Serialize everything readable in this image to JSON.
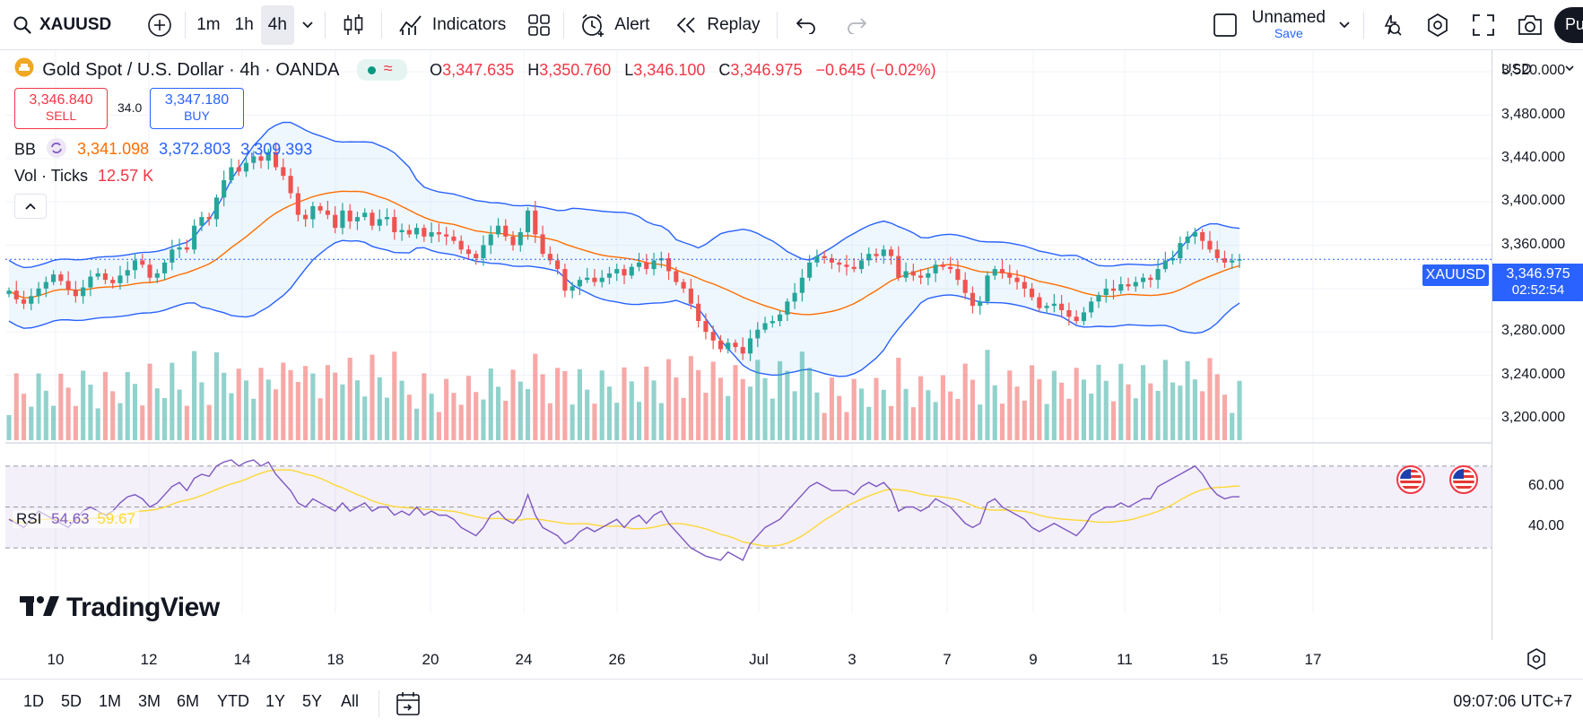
{
  "toolbar": {
    "symbol": "XAUUSD",
    "intervals": [
      "1m",
      "1h",
      "4h"
    ],
    "active_interval": "4h",
    "indicators_label": "Indicators",
    "alert_label": "Alert",
    "replay_label": "Replay",
    "layout_name": "Unnamed",
    "layout_save": "Save",
    "publish_label": "Pu"
  },
  "legend": {
    "title": "Gold Spot / U.S. Dollar · 4h · OANDA",
    "o_label": "O",
    "o": "3,347.635",
    "h_label": "H",
    "h": "3,350.760",
    "l_label": "L",
    "l": "3,346.100",
    "c_label": "C",
    "c": "3,346.975",
    "change": "−0.645 (−0.02%)",
    "sell_price": "3,346.840",
    "sell_label": "SELL",
    "spread": "34.0",
    "buy_price": "3,347.180",
    "buy_label": "BUY",
    "bb_label": "BB",
    "bb_mid": "3,341.098",
    "bb_upper": "3,372.803",
    "bb_lower": "3,309.393",
    "vol_label": "Vol · Ticks",
    "vol_value": "12.57 K",
    "rsi_label": "RSI",
    "rsi_value": "54.63",
    "rsi_ma": "59.67",
    "watermark": "TradingView"
  },
  "price_axis": {
    "currency": "USD",
    "labels": [
      "3,520.000",
      "3,480.000",
      "3,440.000",
      "3,400.000",
      "3,360.000",
      "3,320.000",
      "3,280.000",
      "3,240.000",
      "3,200.000"
    ],
    "symbol_tag": "XAUUSD",
    "last_price": "3,346.975",
    "countdown": "02:52:54",
    "rsi_labels": [
      "60.00",
      "40.00"
    ]
  },
  "time_axis": {
    "labels": [
      "10",
      "12",
      "14",
      "18",
      "20",
      "24",
      "26",
      "Jul",
      "3",
      "7",
      "9",
      "11",
      "15",
      "17"
    ]
  },
  "bottom": {
    "ranges": [
      "1D",
      "5D",
      "1M",
      "3M",
      "6M",
      "YTD",
      "1Y",
      "5Y",
      "All"
    ],
    "clock": "09:07:06 UTC+7"
  },
  "colors": {
    "up": "#26a69a",
    "down": "#ef5350",
    "bb_line": "#2962ff",
    "bb_mid": "#ff6d00",
    "rsi": "#7e57c2",
    "rsi_ma": "#fdd835",
    "accent": "#2962ff"
  },
  "chart_data": {
    "type": "candlestick",
    "symbol": "XAUUSD",
    "ylim": [
      3180,
      3540
    ],
    "rsi_ylim": [
      20,
      80
    ],
    "close": [
      3318,
      3310,
      3306,
      3313,
      3320,
      3326,
      3333,
      3327,
      3319,
      3313,
      3321,
      3331,
      3334,
      3328,
      3325,
      3332,
      3337,
      3346,
      3342,
      3330,
      3334,
      3344,
      3356,
      3358,
      3356,
      3378,
      3386,
      3384,
      3404,
      3420,
      3432,
      3428,
      3436,
      3442,
      3438,
      3446,
      3432,
      3424,
      3408,
      3388,
      3384,
      3396,
      3392,
      3388,
      3376,
      3392,
      3382,
      3386,
      3390,
      3378,
      3384,
      3386,
      3372,
      3374,
      3370,
      3376,
      3368,
      3372,
      3370,
      3368,
      3364,
      3356,
      3352,
      3348,
      3360,
      3370,
      3378,
      3368,
      3360,
      3372,
      3392,
      3370,
      3352,
      3346,
      3338,
      3318,
      3322,
      3328,
      3330,
      3326,
      3330,
      3334,
      3338,
      3332,
      3340,
      3344,
      3338,
      3346,
      3348,
      3336,
      3326,
      3320,
      3306,
      3290,
      3280,
      3272,
      3264,
      3270,
      3266,
      3260,
      3274,
      3282,
      3288,
      3290,
      3296,
      3308,
      3316,
      3330,
      3344,
      3350,
      3348,
      3344,
      3342,
      3340,
      3338,
      3346,
      3352,
      3350,
      3356,
      3350,
      3330,
      3336,
      3332,
      3330,
      3334,
      3342,
      3340,
      3338,
      3328,
      3316,
      3304,
      3308,
      3332,
      3338,
      3334,
      3330,
      3326,
      3320,
      3312,
      3302,
      3304,
      3306,
      3300,
      3294,
      3290,
      3298,
      3308,
      3314,
      3320,
      3318,
      3324,
      3322,
      3326,
      3330,
      3328,
      3338,
      3346,
      3348,
      3362,
      3368,
      3372,
      3364,
      3356,
      3348,
      3344,
      3346,
      3347
    ],
    "rsi": [
      44,
      42,
      40,
      44,
      48,
      46,
      44,
      42,
      40,
      44,
      48,
      50,
      48,
      46,
      48,
      52,
      55,
      56,
      54,
      50,
      52,
      56,
      60,
      62,
      58,
      64,
      66,
      65,
      70,
      72,
      73,
      70,
      72,
      73,
      70,
      72,
      66,
      62,
      58,
      52,
      50,
      54,
      52,
      50,
      48,
      52,
      48,
      50,
      52,
      48,
      50,
      50,
      46,
      48,
      46,
      50,
      46,
      48,
      46,
      46,
      44,
      40,
      38,
      36,
      40,
      46,
      48,
      44,
      42,
      46,
      56,
      46,
      40,
      38,
      36,
      32,
      34,
      38,
      40,
      38,
      40,
      42,
      44,
      40,
      44,
      46,
      42,
      46,
      48,
      42,
      38,
      34,
      30,
      28,
      26,
      25,
      24,
      28,
      26,
      24,
      32,
      36,
      40,
      42,
      44,
      48,
      52,
      56,
      60,
      62,
      60,
      58,
      58,
      58,
      56,
      60,
      62,
      60,
      62,
      58,
      48,
      50,
      50,
      48,
      50,
      54,
      52,
      50,
      46,
      42,
      40,
      42,
      52,
      54,
      50,
      48,
      46,
      44,
      40,
      38,
      40,
      42,
      40,
      38,
      36,
      40,
      46,
      48,
      50,
      50,
      52,
      50,
      52,
      54,
      54,
      60,
      62,
      64,
      66,
      68,
      70,
      66,
      60,
      56,
      54,
      55,
      55
    ]
  }
}
